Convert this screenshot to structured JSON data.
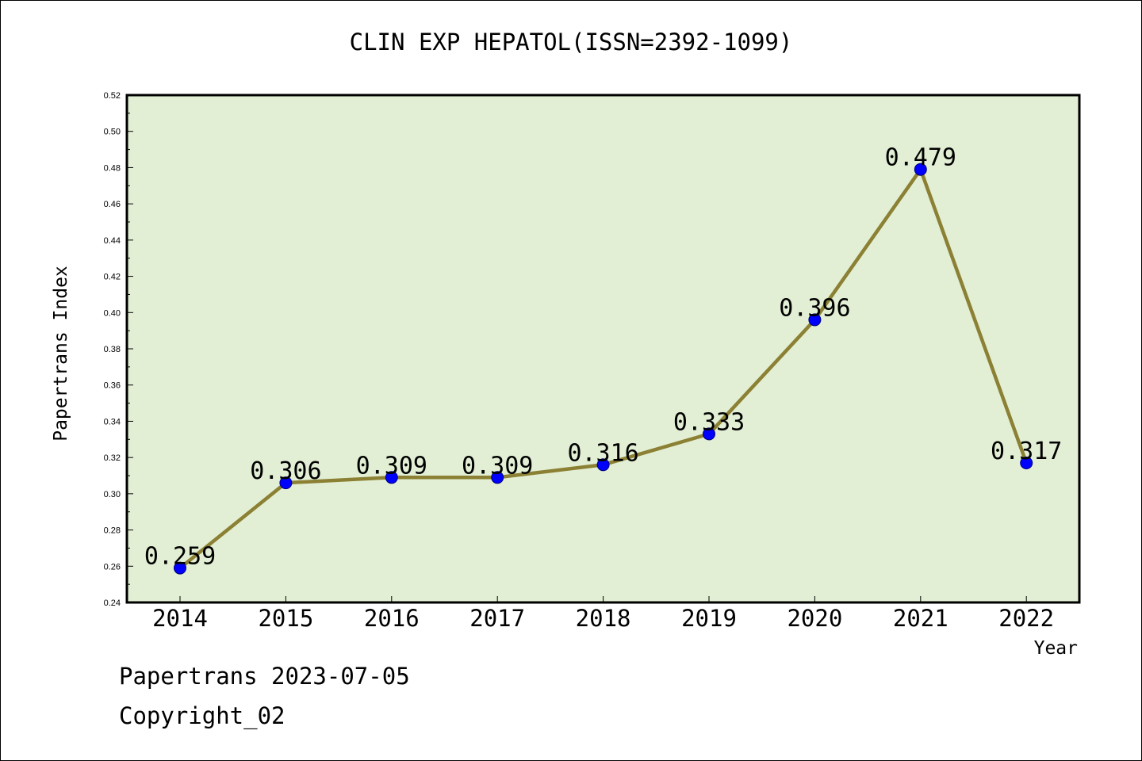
{
  "footer": {
    "line1": "Papertrans 2023-07-05",
    "line2": "Copyright_02"
  },
  "chart_data": {
    "type": "line",
    "title": "CLIN EXP HEPATOL(ISSN=2392-1099)",
    "xlabel": "Year",
    "ylabel": "Papertrans Index",
    "categories": [
      "2014",
      "2015",
      "2016",
      "2017",
      "2018",
      "2019",
      "2020",
      "2021",
      "2022"
    ],
    "values": [
      0.259,
      0.306,
      0.309,
      0.309,
      0.316,
      0.333,
      0.396,
      0.479,
      0.317
    ],
    "data_labels": [
      "0.259",
      "0.306",
      "0.309",
      "0.309",
      "0.316",
      "0.333",
      "0.396",
      "0.479",
      "0.317"
    ],
    "ylim": [
      0.24,
      0.52
    ],
    "yticks": [
      "0.24",
      "0.26",
      "0.28",
      "0.30",
      "0.32",
      "0.34",
      "0.36",
      "0.38",
      "0.40",
      "0.42",
      "0.44",
      "0.46",
      "0.48",
      "0.50",
      "0.52"
    ],
    "grid": false,
    "colors": {
      "plot_background": "#e2efd4",
      "line": "#8b8033",
      "marker": "#0000ff"
    }
  }
}
